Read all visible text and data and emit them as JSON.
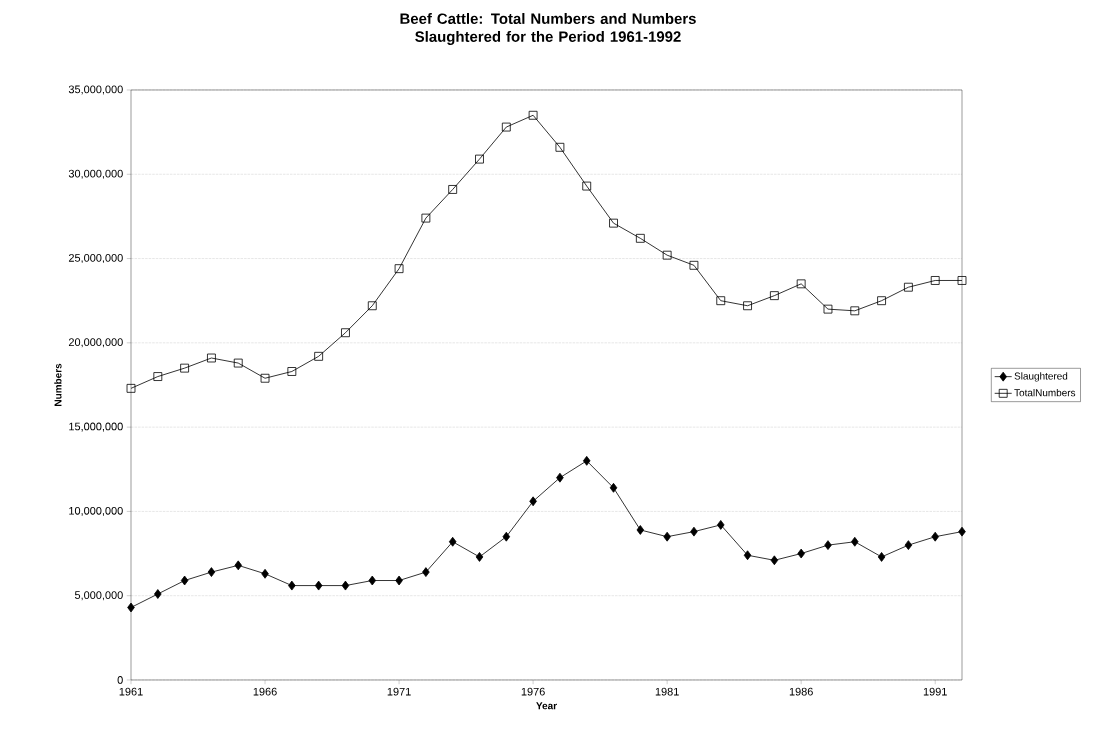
{
  "chart_data": {
    "type": "line",
    "title": "Beef Cattle: Total Numbers and Numbers Slaughtered for the Period 1961-1992",
    "xlabel": "Year",
    "ylabel": "Numbers",
    "x": [
      1961,
      1962,
      1963,
      1964,
      1965,
      1966,
      1967,
      1968,
      1969,
      1970,
      1971,
      1972,
      1973,
      1974,
      1975,
      1976,
      1977,
      1978,
      1979,
      1980,
      1981,
      1982,
      1983,
      1984,
      1985,
      1986,
      1987,
      1988,
      1989,
      1990,
      1991,
      1992
    ],
    "series": [
      {
        "name": "Slaughtered",
        "color": "#000000",
        "marker": "diamond",
        "values": [
          4300000,
          5100000,
          5900000,
          6400000,
          6800000,
          6300000,
          5600000,
          5600000,
          5600000,
          5900000,
          5900000,
          6400000,
          8200000,
          7300000,
          8500000,
          10600000,
          12000000,
          13000000,
          11400000,
          8900000,
          8500000,
          8800000,
          9200000,
          7400000,
          7100000,
          7500000,
          8000000,
          8200000,
          7300000,
          8000000,
          8500000,
          8800000
        ]
      },
      {
        "name": "TotalNumbers",
        "color": "#000000",
        "marker": "square",
        "values": [
          17300000,
          18000000,
          18500000,
          19100000,
          18800000,
          17900000,
          18300000,
          19200000,
          20600000,
          22200000,
          24400000,
          27400000,
          29100000,
          30900000,
          32800000,
          33500000,
          31600000,
          29300000,
          27100000,
          26200000,
          25200000,
          24600000,
          22500000,
          22200000,
          22800000,
          23500000,
          22000000,
          21900000,
          22500000,
          23300000,
          23700000,
          23700000
        ]
      }
    ],
    "xlim": [
      1961,
      1992
    ],
    "xticks": [
      1961,
      1966,
      1971,
      1976,
      1981,
      1986,
      1991
    ],
    "ylim": [
      0,
      35000000
    ],
    "yticks": [
      0,
      {
        "value": 5000000,
        "label": "5,000,000"
      },
      {
        "value": 10000000,
        "label": "10,000,000"
      },
      {
        "value": 15000000,
        "label": "15,000,000"
      },
      {
        "value": 20000000,
        "label": "20,000,000"
      },
      {
        "value": 25000000,
        "label": "25,000,000"
      },
      {
        "value": 30000000,
        "label": "30,000,000"
      },
      {
        "value": 35000000,
        "label": "35,000,000"
      }
    ],
    "grid": "y",
    "legend": "right",
    "line_style": "solid"
  }
}
